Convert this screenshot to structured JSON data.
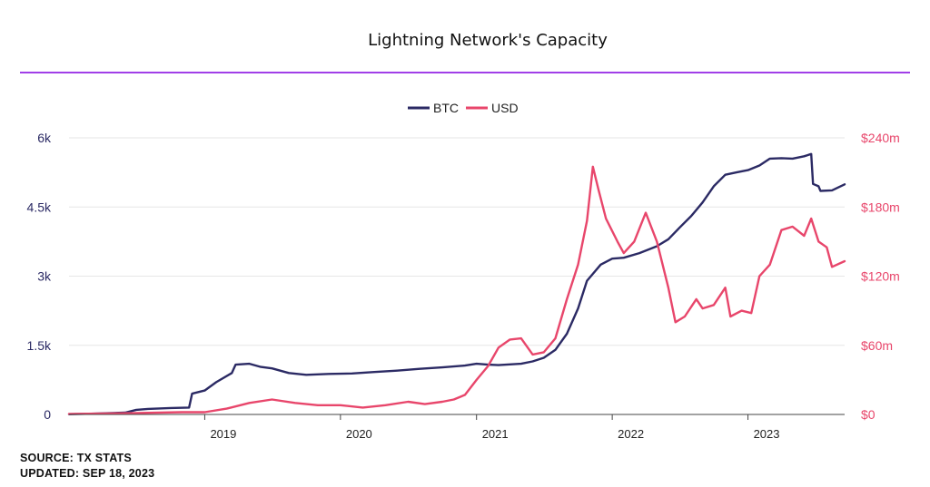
{
  "title": "Lightning Network's Capacity",
  "footer": {
    "source": "SOURCE: TX STATS",
    "updated": "UPDATED: SEP 18, 2023"
  },
  "colors": {
    "btc": "#2b2a64",
    "usd": "#e8466b",
    "divider": "#a13fe8",
    "grid": "#e6e6e6"
  },
  "chart_data": {
    "type": "line",
    "legend_position": "top-center",
    "grid": true,
    "x_ticks": [
      "2019",
      "2020",
      "2021",
      "2022",
      "2023"
    ],
    "x_range": [
      "2018-01-01",
      "2023-09-18"
    ],
    "left_axis": {
      "ticks": [
        "0",
        "1.5k",
        "3k",
        "4.5k",
        "6k"
      ],
      "values": [
        0,
        1500,
        3000,
        4500,
        6000
      ],
      "ylim": [
        0,
        6000
      ]
    },
    "right_axis": {
      "ticks": [
        "$0",
        "$60m",
        "$120m",
        "$180m",
        "$240m"
      ],
      "values": [
        0,
        60,
        120,
        180,
        240
      ],
      "ylim": [
        0,
        240
      ]
    },
    "series": [
      {
        "name": "BTC",
        "axis": "left",
        "points": [
          [
            "2018-01-01",
            5
          ],
          [
            "2018-03-01",
            15
          ],
          [
            "2018-06-01",
            40
          ],
          [
            "2018-07-01",
            100
          ],
          [
            "2018-08-01",
            120
          ],
          [
            "2018-10-01",
            140
          ],
          [
            "2018-11-20",
            150
          ],
          [
            "2018-11-28",
            450
          ],
          [
            "2019-01-01",
            520
          ],
          [
            "2019-02-01",
            700
          ],
          [
            "2019-03-15",
            900
          ],
          [
            "2019-03-25",
            1080
          ],
          [
            "2019-05-01",
            1100
          ],
          [
            "2019-06-01",
            1030
          ],
          [
            "2019-07-01",
            1000
          ],
          [
            "2019-08-15",
            900
          ],
          [
            "2019-10-01",
            860
          ],
          [
            "2019-12-01",
            880
          ],
          [
            "2020-02-01",
            890
          ],
          [
            "2020-04-01",
            920
          ],
          [
            "2020-06-01",
            950
          ],
          [
            "2020-08-01",
            990
          ],
          [
            "2020-10-01",
            1020
          ],
          [
            "2020-12-01",
            1060
          ],
          [
            "2021-01-01",
            1100
          ],
          [
            "2021-02-01",
            1080
          ],
          [
            "2021-03-01",
            1070
          ],
          [
            "2021-05-01",
            1100
          ],
          [
            "2021-06-01",
            1150
          ],
          [
            "2021-07-01",
            1230
          ],
          [
            "2021-08-01",
            1400
          ],
          [
            "2021-09-01",
            1750
          ],
          [
            "2021-10-01",
            2300
          ],
          [
            "2021-10-25",
            2900
          ],
          [
            "2021-12-01",
            3250
          ],
          [
            "2022-01-01",
            3380
          ],
          [
            "2022-02-01",
            3400
          ],
          [
            "2022-03-15",
            3500
          ],
          [
            "2022-05-01",
            3650
          ],
          [
            "2022-06-01",
            3800
          ],
          [
            "2022-07-01",
            4050
          ],
          [
            "2022-08-01",
            4300
          ],
          [
            "2022-09-01",
            4600
          ],
          [
            "2022-10-01",
            4950
          ],
          [
            "2022-11-01",
            5200
          ],
          [
            "2022-12-01",
            5250
          ],
          [
            "2023-01-01",
            5300
          ],
          [
            "2023-02-01",
            5400
          ],
          [
            "2023-03-01",
            5550
          ],
          [
            "2023-04-01",
            5560
          ],
          [
            "2023-05-01",
            5550
          ],
          [
            "2023-06-01",
            5600
          ],
          [
            "2023-06-20",
            5650
          ],
          [
            "2023-06-25",
            5000
          ],
          [
            "2023-07-10",
            4950
          ],
          [
            "2023-07-15",
            4850
          ],
          [
            "2023-08-15",
            4860
          ],
          [
            "2023-09-18",
            4990
          ]
        ]
      },
      {
        "name": "USD",
        "axis": "right",
        "points": [
          [
            "2018-01-01",
            0.5
          ],
          [
            "2018-06-01",
            1
          ],
          [
            "2018-11-01",
            2
          ],
          [
            "2019-01-01",
            2
          ],
          [
            "2019-03-01",
            5
          ],
          [
            "2019-05-01",
            10
          ],
          [
            "2019-07-01",
            13
          ],
          [
            "2019-09-01",
            10
          ],
          [
            "2019-11-01",
            8
          ],
          [
            "2020-01-01",
            8
          ],
          [
            "2020-03-01",
            6
          ],
          [
            "2020-05-01",
            8
          ],
          [
            "2020-07-01",
            11
          ],
          [
            "2020-08-15",
            9
          ],
          [
            "2020-10-01",
            11
          ],
          [
            "2020-11-01",
            13
          ],
          [
            "2020-12-01",
            17
          ],
          [
            "2021-01-01",
            30
          ],
          [
            "2021-02-01",
            42
          ],
          [
            "2021-03-01",
            58
          ],
          [
            "2021-04-01",
            65
          ],
          [
            "2021-05-01",
            66
          ],
          [
            "2021-06-01",
            52
          ],
          [
            "2021-07-01",
            54
          ],
          [
            "2021-08-01",
            66
          ],
          [
            "2021-09-01",
            100
          ],
          [
            "2021-10-01",
            130
          ],
          [
            "2021-10-25",
            168
          ],
          [
            "2021-11-10",
            215
          ],
          [
            "2021-11-25",
            195
          ],
          [
            "2021-12-15",
            170
          ],
          [
            "2022-01-15",
            150
          ],
          [
            "2022-02-01",
            140
          ],
          [
            "2022-03-01",
            150
          ],
          [
            "2022-04-01",
            175
          ],
          [
            "2022-05-01",
            150
          ],
          [
            "2022-06-01",
            110
          ],
          [
            "2022-06-20",
            80
          ],
          [
            "2022-07-15",
            85
          ],
          [
            "2022-08-15",
            100
          ],
          [
            "2022-09-01",
            92
          ],
          [
            "2022-10-01",
            95
          ],
          [
            "2022-11-01",
            110
          ],
          [
            "2022-11-15",
            85
          ],
          [
            "2022-12-15",
            90
          ],
          [
            "2023-01-10",
            88
          ],
          [
            "2023-02-01",
            120
          ],
          [
            "2023-03-01",
            130
          ],
          [
            "2023-04-01",
            160
          ],
          [
            "2023-05-01",
            163
          ],
          [
            "2023-06-01",
            155
          ],
          [
            "2023-06-20",
            170
          ],
          [
            "2023-07-10",
            150
          ],
          [
            "2023-08-01",
            145
          ],
          [
            "2023-08-15",
            128
          ],
          [
            "2023-09-18",
            133
          ]
        ]
      }
    ]
  }
}
